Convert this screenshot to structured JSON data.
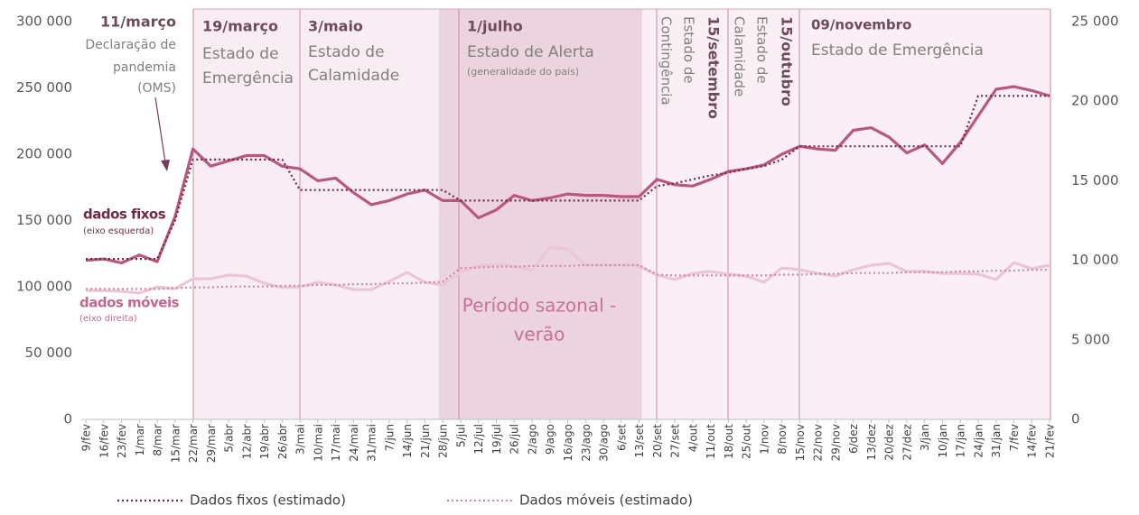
{
  "chart_data": {
    "type": "line",
    "categories": [
      "9/fev",
      "16/fev",
      "23/fev",
      "1/mar",
      "8/mar",
      "15/mar",
      "22/mar",
      "29/mar",
      "5/abr",
      "12/abr",
      "19/abr",
      "26/abr",
      "3/mai",
      "10/mai",
      "17/mai",
      "24/mai",
      "31/mai",
      "7/jun",
      "14/jun",
      "21/jun",
      "28/jun",
      "5/jul",
      "12/jul",
      "19/jul",
      "26/jul",
      "2/ago",
      "9/ago",
      "16/ago",
      "23/ago",
      "30/ago",
      "6/set",
      "13/set",
      "20/set",
      "27/set",
      "4/out",
      "11/out",
      "18/out",
      "25/out",
      "1/nov",
      "8/nov",
      "15/nov",
      "22/nov",
      "29/nov",
      "6/dez",
      "13/dez",
      "20/dez",
      "27/dez",
      "3/jan",
      "10/jan",
      "17/jan",
      "24/jan",
      "31/jan",
      "7/fev",
      "14/fev",
      "21/fev"
    ],
    "series": [
      {
        "name": "dados fixos",
        "color": "#b8587f",
        "style": "solid",
        "values": [
          120000,
          121000,
          118000,
          124000,
          119000,
          153000,
          204000,
          191000,
          195000,
          199000,
          199000,
          191000,
          189000,
          180000,
          182000,
          171000,
          162000,
          165000,
          170000,
          173000,
          165000,
          165000,
          152000,
          158000,
          169000,
          165000,
          167000,
          170000,
          169000,
          169000,
          168000,
          168000,
          181000,
          177000,
          176000,
          181000,
          187000,
          189000,
          192000,
          200000,
          206000,
          204000,
          203000,
          218000,
          220000,
          213000,
          201000,
          207000,
          193000,
          209000,
          229000,
          249000,
          251000,
          248000,
          244000
        ]
      },
      {
        "name": "dados móveis",
        "color": "#ebc6d6",
        "style": "solid",
        "axis": "y2",
        "values": [
          8100,
          8100,
          8050,
          7940,
          8330,
          8220,
          8840,
          8840,
          9070,
          9010,
          8560,
          8280,
          8330,
          8620,
          8450,
          8160,
          8160,
          8670,
          9240,
          8620,
          8450,
          9240,
          9640,
          9750,
          9640,
          9350,
          10830,
          10710,
          9690,
          9690,
          9690,
          9640,
          9070,
          8790,
          9180,
          9300,
          9130,
          9010,
          8620,
          9520,
          9410,
          9180,
          9010,
          9410,
          9690,
          9810,
          9300,
          9300,
          9180,
          9180,
          9130,
          8790,
          9860,
          9470,
          9690
        ]
      },
      {
        "name": "Dados fixos (estimado)",
        "color": "#6e2a48",
        "style": "dotted",
        "values": [
          121000,
          121000,
          121000,
          121000,
          121000,
          150000,
          196000,
          196000,
          196000,
          196000,
          196000,
          196000,
          173000,
          173000,
          173000,
          173000,
          173000,
          173000,
          173000,
          173000,
          173000,
          165000,
          165000,
          165000,
          165000,
          165000,
          165000,
          165000,
          165000,
          165000,
          165000,
          165000,
          176000,
          178000,
          181000,
          184000,
          186000,
          189000,
          191000,
          196000,
          206000,
          206000,
          206000,
          206000,
          206000,
          206000,
          206000,
          206000,
          206000,
          206000,
          244000,
          244000,
          244000,
          244000,
          244000
        ]
      },
      {
        "name": "Dados móveis (estimado)",
        "color": "#d08aa8",
        "style": "dotted",
        "axis": "y2",
        "values": [
          8200,
          8200,
          8200,
          8200,
          8200,
          8250,
          8300,
          8300,
          8350,
          8350,
          8350,
          8400,
          8400,
          8450,
          8450,
          8500,
          8500,
          8550,
          8550,
          8600,
          8650,
          9500,
          9550,
          9600,
          9600,
          9650,
          9650,
          9650,
          9700,
          9700,
          9700,
          9700,
          9100,
          9050,
          9050,
          9050,
          9050,
          9050,
          9050,
          9100,
          9100,
          9150,
          9150,
          9200,
          9200,
          9200,
          9250,
          9250,
          9250,
          9300,
          9300,
          9350,
          9350,
          9400,
          9400
        ]
      }
    ],
    "ylim": [
      0,
      300000
    ],
    "yticks": [
      0,
      {
        "value": 50000,
        "label": "50 000"
      },
      {
        "value": 100000,
        "label": "100 000"
      },
      {
        "value": 150000,
        "label": "150 000"
      },
      {
        "value": 200000,
        "label": "200 000"
      },
      {
        "value": 250000,
        "label": "250 000"
      },
      {
        "value": 300000,
        "label": "300 000"
      }
    ],
    "y2lim": [
      0,
      25000
    ],
    "y2ticks": [
      0,
      {
        "value": 5000,
        "label": "5 000"
      },
      {
        "value": 10000,
        "label": "10 000"
      },
      {
        "value": 15000,
        "label": "15 000"
      },
      {
        "value": 20000,
        "label": "20 000"
      },
      {
        "value": 25000,
        "label": "25 000"
      }
    ],
    "annotations": [
      {
        "title": "11/março",
        "text": [
          "Declaração de",
          "pandemia",
          "(OMS)"
        ]
      },
      {
        "title": "19/março",
        "text": [
          "Estado de",
          "Emergência"
        ]
      },
      {
        "title": "3/maio",
        "text": [
          "Estado de",
          "Calamidade"
        ]
      },
      {
        "title": "1/julho",
        "text": [
          "Estado de Alerta",
          "(generalidade do país)"
        ]
      },
      {
        "title": "15/setembro",
        "text": [
          "Estado de",
          "Contingência"
        ]
      },
      {
        "title": "15/outubro",
        "text": [
          "Estado de",
          "Calamidade"
        ]
      },
      {
        "title": "09/novembro",
        "text": [
          "Estado de Emergência"
        ]
      }
    ],
    "season_label": [
      "Período sazonal -",
      "verão"
    ],
    "axis_notes": [
      "(eixo esquerda)",
      "(eixo direita)"
    ]
  }
}
